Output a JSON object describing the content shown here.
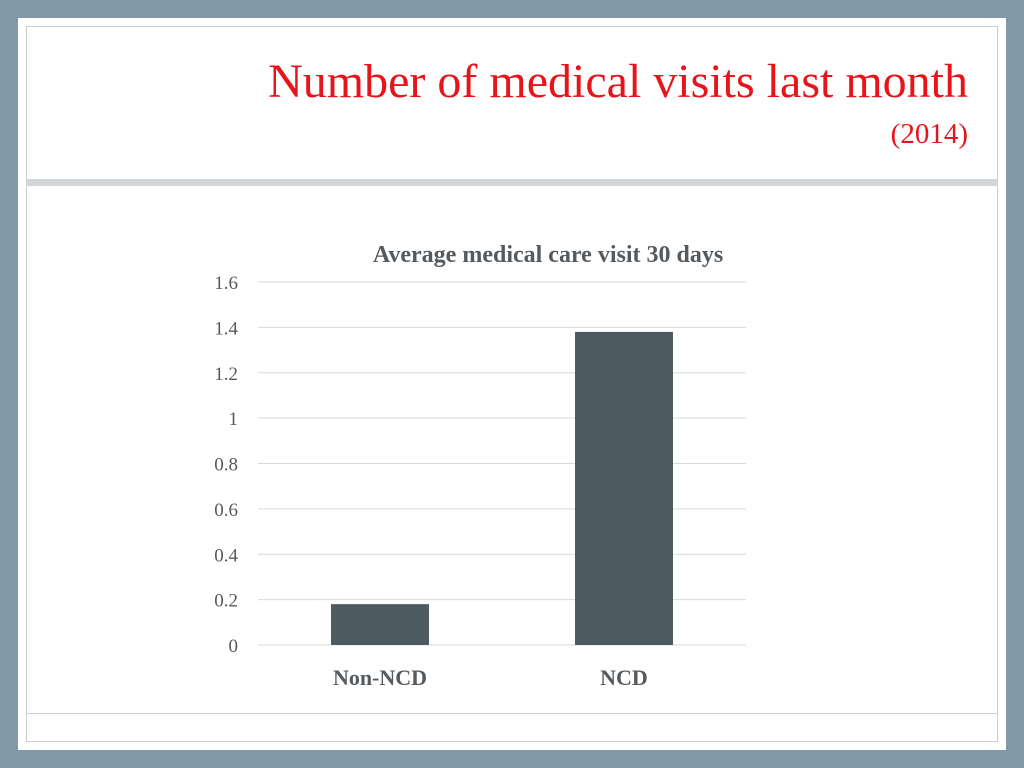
{
  "slide": {
    "title": "Number of medical visits last month",
    "subtitle": "(2014)"
  },
  "chart_data": {
    "type": "bar",
    "title": "Average medical care visit 30 days",
    "categories": [
      "Non-NCD",
      "NCD"
    ],
    "values": [
      0.18,
      1.38
    ],
    "ylim": [
      0,
      1.6
    ],
    "yticks": [
      "0",
      "0.2",
      "0.4",
      "0.6",
      "0.8",
      "1",
      "1.2",
      "1.4",
      "1.6"
    ],
    "xlabel": "",
    "ylabel": "",
    "grid": true,
    "legend": "none",
    "bar_color": "#4d5a60",
    "grid_color": "#d9d9d9"
  },
  "colors": {
    "title": "#e8141b",
    "background": "#7f99a6"
  }
}
